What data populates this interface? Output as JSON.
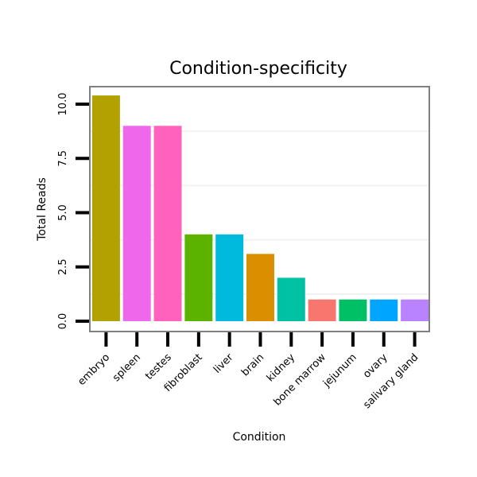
{
  "chart_data": {
    "type": "bar",
    "title": "Condition-specificity",
    "xlabel": "Condition",
    "ylabel": "Total Reads",
    "categories": [
      "embryo",
      "spleen",
      "testes",
      "fibroblast",
      "liver",
      "brain",
      "kidney",
      "bone marrow",
      "jejunum",
      "ovary",
      "salivary gland"
    ],
    "values": [
      10.4,
      9,
      9,
      4,
      4,
      3.1,
      2,
      1,
      1,
      1,
      1
    ],
    "colors": [
      "#B2A100",
      "#EF67EB",
      "#FF62BC",
      "#5BB300",
      "#00BADE",
      "#DB8E00",
      "#00C1A3",
      "#F8766D",
      "#00C065",
      "#00A5FF",
      "#B983FF"
    ],
    "ylim": [
      -0.5,
      11
    ],
    "yticks": [
      0,
      2.5,
      5,
      7.5,
      10
    ],
    "ytick_labels": [
      "0.0",
      "2.5",
      "5.0",
      "7.5",
      "10.0"
    ],
    "grid": true
  }
}
